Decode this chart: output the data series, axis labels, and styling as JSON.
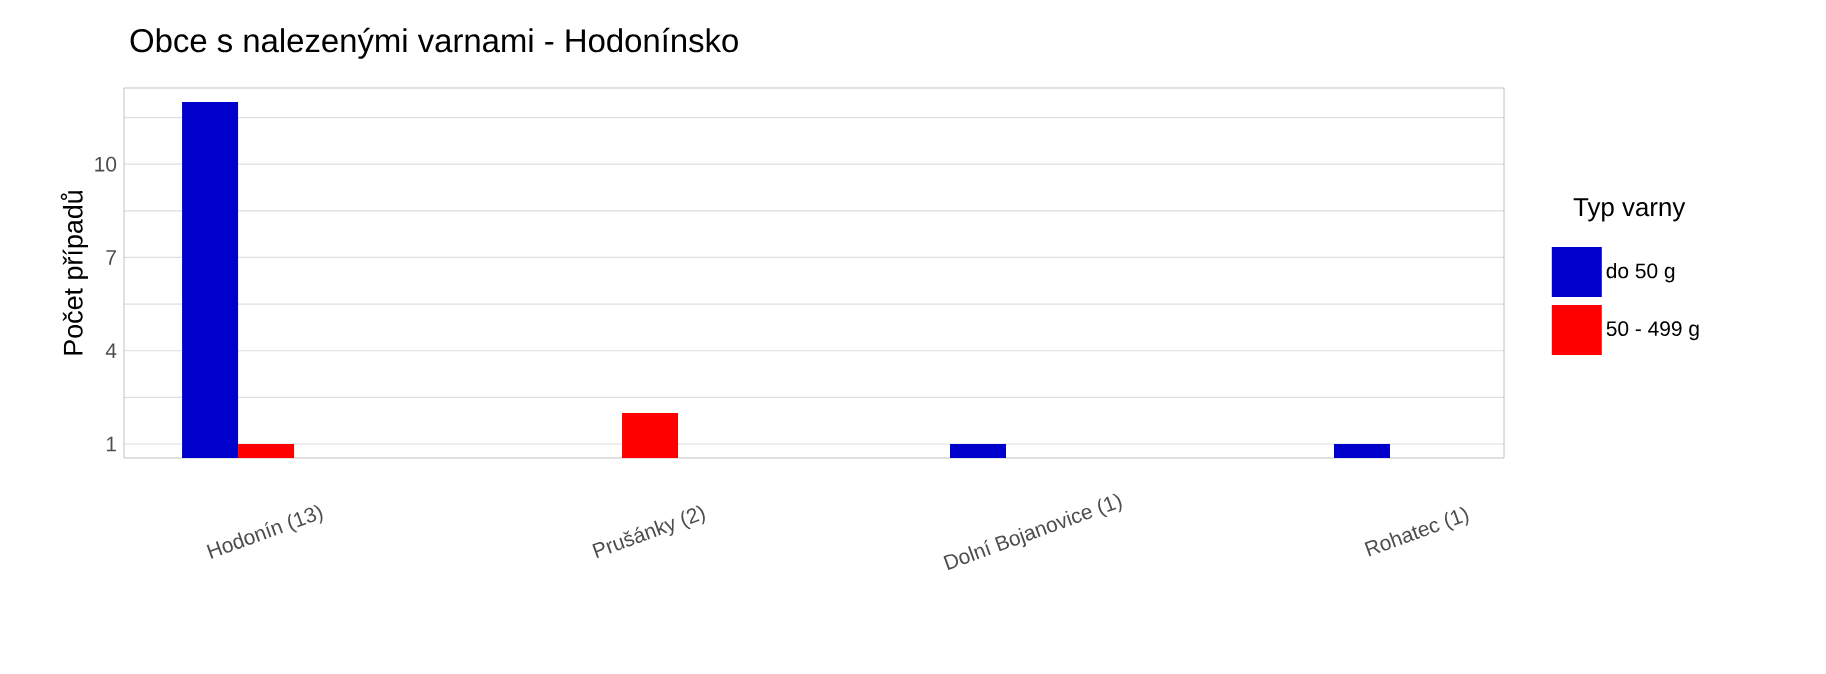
{
  "chart_data": {
    "type": "bar",
    "title": "Obce s nalezenými varnami - Hodonínsko",
    "xlabel": null,
    "ylabel": "Počet případů",
    "legend_title": "Typ varny",
    "categories": [
      "Hodonín (13)",
      "Prušánky (2)",
      "Dolní Bojanovice (1)",
      "Rohatec (1)"
    ],
    "series": [
      {
        "name": "do 50 g",
        "color": "#0000cd",
        "values": [
          12,
          null,
          1,
          1
        ]
      },
      {
        "name": "50 - 499 g",
        "color": "#ff0000",
        "values": [
          1,
          2,
          null,
          null
        ]
      }
    ],
    "ylim": [
      0.55,
      12.45
    ],
    "yticks": [
      1,
      {
        "value": 2.5,
        "label": null
      },
      4,
      {
        "value": 5.5,
        "label": null
      },
      7,
      {
        "value": 8.5,
        "label": null
      },
      10,
      {
        "value": 11.5,
        "label": null
      }
    ],
    "grid": "y",
    "legend": "right"
  }
}
